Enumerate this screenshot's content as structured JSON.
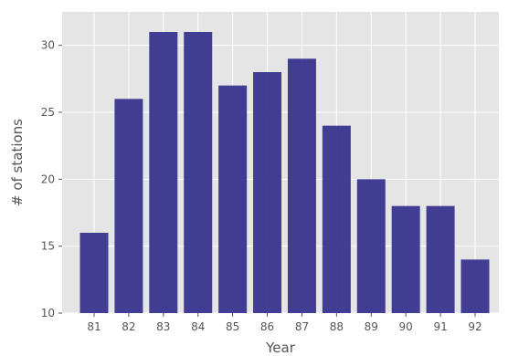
{
  "chart_data": {
    "type": "bar",
    "title": "",
    "xlabel": "Year",
    "ylabel": "# of stations",
    "categories": [
      "81",
      "82",
      "83",
      "84",
      "85",
      "86",
      "87",
      "88",
      "89",
      "90",
      "91",
      "92"
    ],
    "values": [
      16,
      26,
      31,
      31,
      27,
      28,
      29,
      24,
      20,
      18,
      18,
      14
    ],
    "ylim": [
      10,
      32.5
    ],
    "yticks": [
      10,
      15,
      20,
      25,
      30
    ],
    "grid": true,
    "colors": {
      "bar": "#2e2a8a",
      "plot_background": "#e5e5e5",
      "grid": "#ffffff",
      "text": "#555555"
    }
  }
}
